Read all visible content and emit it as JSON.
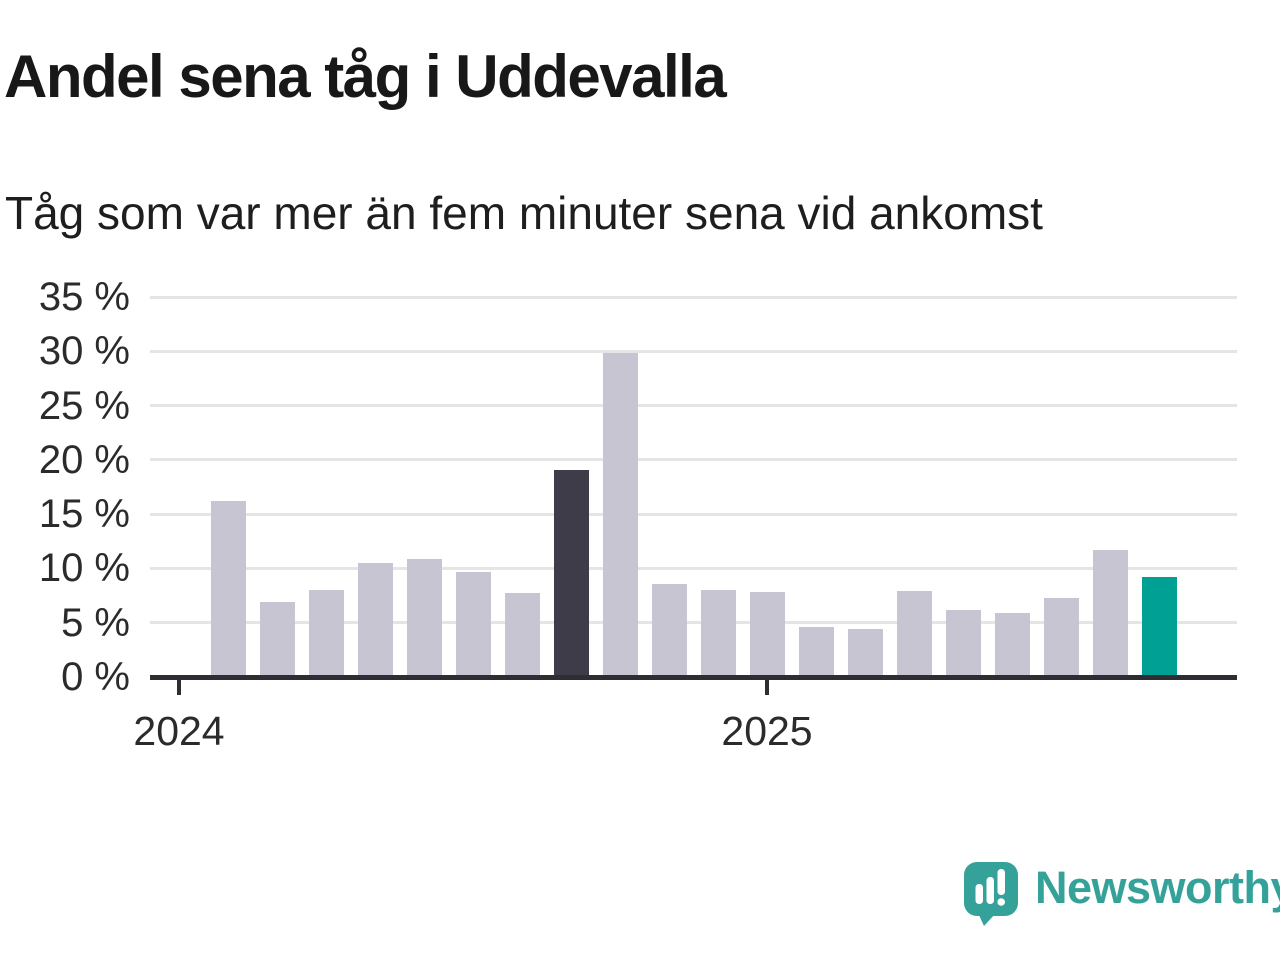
{
  "chart_data": {
    "type": "bar",
    "title": "Andel sena tåg i Uddevalla",
    "subtitle": "Tåg som var mer än fem minuter sena vid ankomst",
    "unit": "%",
    "ylim": [
      0,
      35
    ],
    "grid": true,
    "legend_position": "none",
    "yticks": [
      {
        "value": 35,
        "label": "35 %"
      },
      {
        "value": 30,
        "label": "30 %"
      },
      {
        "value": 25,
        "label": "25 %"
      },
      {
        "value": 20,
        "label": "20 %"
      },
      {
        "value": 15,
        "label": "15 %"
      },
      {
        "value": 10,
        "label": "10 %"
      },
      {
        "value": 5,
        "label": "5 %"
      },
      {
        "value": 0,
        "label": "0 %"
      }
    ],
    "year_ticks": [
      {
        "label": "2024",
        "slot": 0
      },
      {
        "label": "2025",
        "slot": 12
      }
    ],
    "bars": [
      {
        "value": 16.2,
        "role": "normal"
      },
      {
        "value": 6.9,
        "role": "normal"
      },
      {
        "value": 8.0,
        "role": "normal"
      },
      {
        "value": 10.5,
        "role": "normal"
      },
      {
        "value": 10.9,
        "role": "normal"
      },
      {
        "value": 9.7,
        "role": "normal"
      },
      {
        "value": 7.7,
        "role": "normal"
      },
      {
        "value": 19.1,
        "role": "dark"
      },
      {
        "value": 29.8,
        "role": "normal"
      },
      {
        "value": 8.6,
        "role": "normal"
      },
      {
        "value": 8.0,
        "role": "normal"
      },
      {
        "value": 7.8,
        "role": "normal"
      },
      {
        "value": 4.6,
        "role": "normal"
      },
      {
        "value": 4.4,
        "role": "normal"
      },
      {
        "value": 7.9,
        "role": "normal"
      },
      {
        "value": 6.2,
        "role": "normal"
      },
      {
        "value": 5.9,
        "role": "normal"
      },
      {
        "value": 7.3,
        "role": "normal"
      },
      {
        "value": 11.7,
        "role": "normal"
      },
      {
        "value": 9.2,
        "role": "teal"
      }
    ],
    "colors": {
      "normal": "#c8c5d2",
      "dark": "#3e3c49",
      "teal": "#00a094",
      "gridline": "#e5e5e5",
      "axis": "#2e2d33",
      "text": "#2b2b2b"
    }
  },
  "logo": {
    "wordmark": "Newsworthy",
    "color": "#35a29a"
  }
}
